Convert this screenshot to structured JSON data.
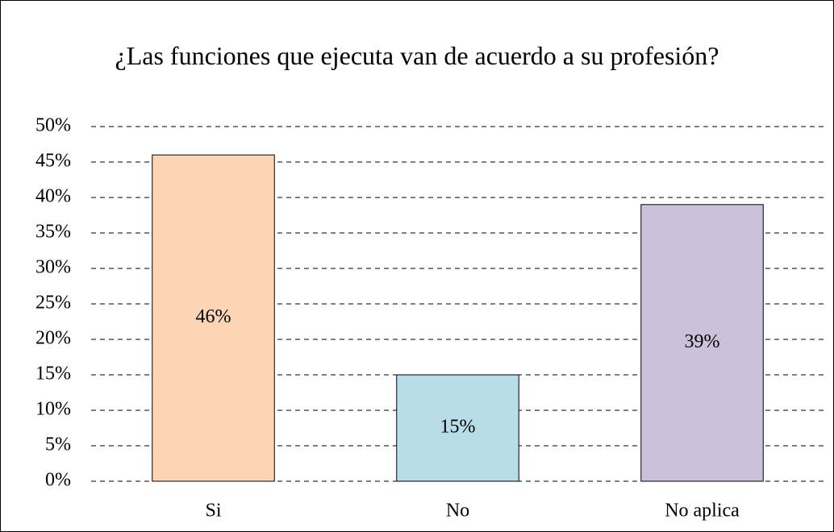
{
  "chart_data": {
    "type": "bar",
    "title": "¿Las funciones que ejecuta van de acuerdo a su profesión?",
    "categories": [
      "Si",
      "No",
      "No aplica"
    ],
    "values": [
      46,
      15,
      39
    ],
    "value_labels": [
      "46%",
      "15%",
      "39%"
    ],
    "colors": [
      "#fbd5b5",
      "#b7dde8",
      "#ccc1da"
    ],
    "ylim": [
      0,
      50
    ],
    "yticks": [
      {
        "value": 0,
        "label": "0%"
      },
      {
        "value": 5,
        "label": "5%"
      },
      {
        "value": 10,
        "label": "10%"
      },
      {
        "value": 15,
        "label": "15%"
      },
      {
        "value": 20,
        "label": "20%"
      },
      {
        "value": 25,
        "label": "25%"
      },
      {
        "value": 30,
        "label": "30%"
      },
      {
        "value": 35,
        "label": "35%"
      },
      {
        "value": 40,
        "label": "40%"
      },
      {
        "value": 45,
        "label": "45%"
      },
      {
        "value": 50,
        "label": "50%"
      }
    ],
    "grid": true
  }
}
